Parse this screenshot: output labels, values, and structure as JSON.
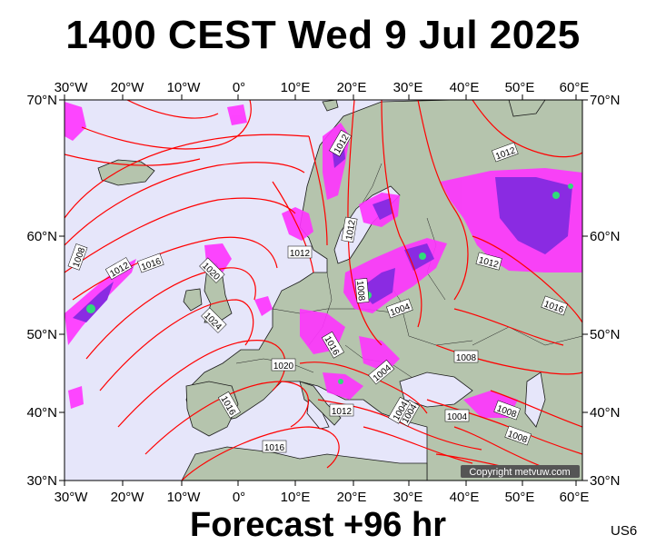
{
  "title": "1400 CEST Wed 9 Jul 2025",
  "footer": "Forecast +96 hr",
  "code": "US6",
  "copyright": "Copyright metvuw.com",
  "map": {
    "lon_labels": [
      "30°W",
      "20°W",
      "10°W",
      "0°",
      "10°E",
      "20°E",
      "30°E",
      "40°E",
      "50°E",
      "60°E"
    ],
    "lat_labels": [
      "70°N",
      "60°N",
      "50°N",
      "40°N",
      "30°N"
    ],
    "isobar_labels": [
      "1012",
      "1012",
      "1012",
      "1012",
      "1008",
      "1012",
      "1016",
      "1020",
      "1024",
      "1020",
      "1016",
      "1012",
      "1008",
      "1004",
      "1016",
      "1004",
      "1004",
      "1012",
      "1004",
      "1008",
      "1008",
      "1008",
      "1016",
      "1004",
      "1012",
      "1016"
    ],
    "colors": {
      "ocean": "#e6e6fa",
      "land": "#b5c4ad",
      "isobar": "#ff0000",
      "precip_magenta": "#ff33ff",
      "precip_purple": "#8a2be2",
      "precip_green": "#2fdc7a"
    }
  }
}
